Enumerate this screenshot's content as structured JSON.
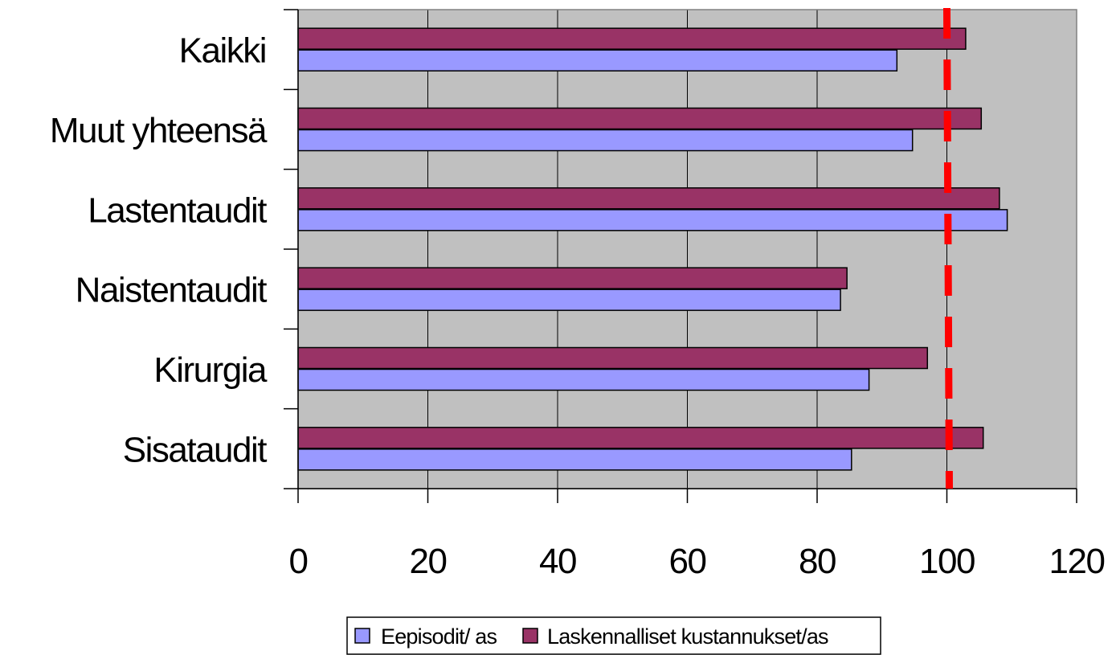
{
  "chart_data": {
    "type": "bar",
    "orientation": "horizontal",
    "categories": [
      "Sisataudit",
      "Kirurgia",
      "Naistentaudit",
      "Lastentaudit",
      "Muut yhteensä",
      "Kaikki"
    ],
    "series": [
      {
        "name": "Eepisodit/ as",
        "color": "#9999ff",
        "values": [
          85.3,
          88.0,
          83.6,
          109.3,
          94.7,
          92.3
        ]
      },
      {
        "name": "Laskennalliset kustannukset/as",
        "color": "#993366",
        "values": [
          105.6,
          97.0,
          84.6,
          108.1,
          105.3,
          102.9
        ]
      }
    ],
    "xlim": [
      0,
      120
    ],
    "xticks": [
      "0",
      "20",
      "40",
      "60",
      "80",
      "100",
      "120"
    ],
    "reference_line": {
      "value": 100,
      "color": "#ff0000",
      "style": "dashed"
    },
    "plot_background": "#c0c0c0",
    "gridlines": "vertical",
    "legend_position": "bottom"
  }
}
